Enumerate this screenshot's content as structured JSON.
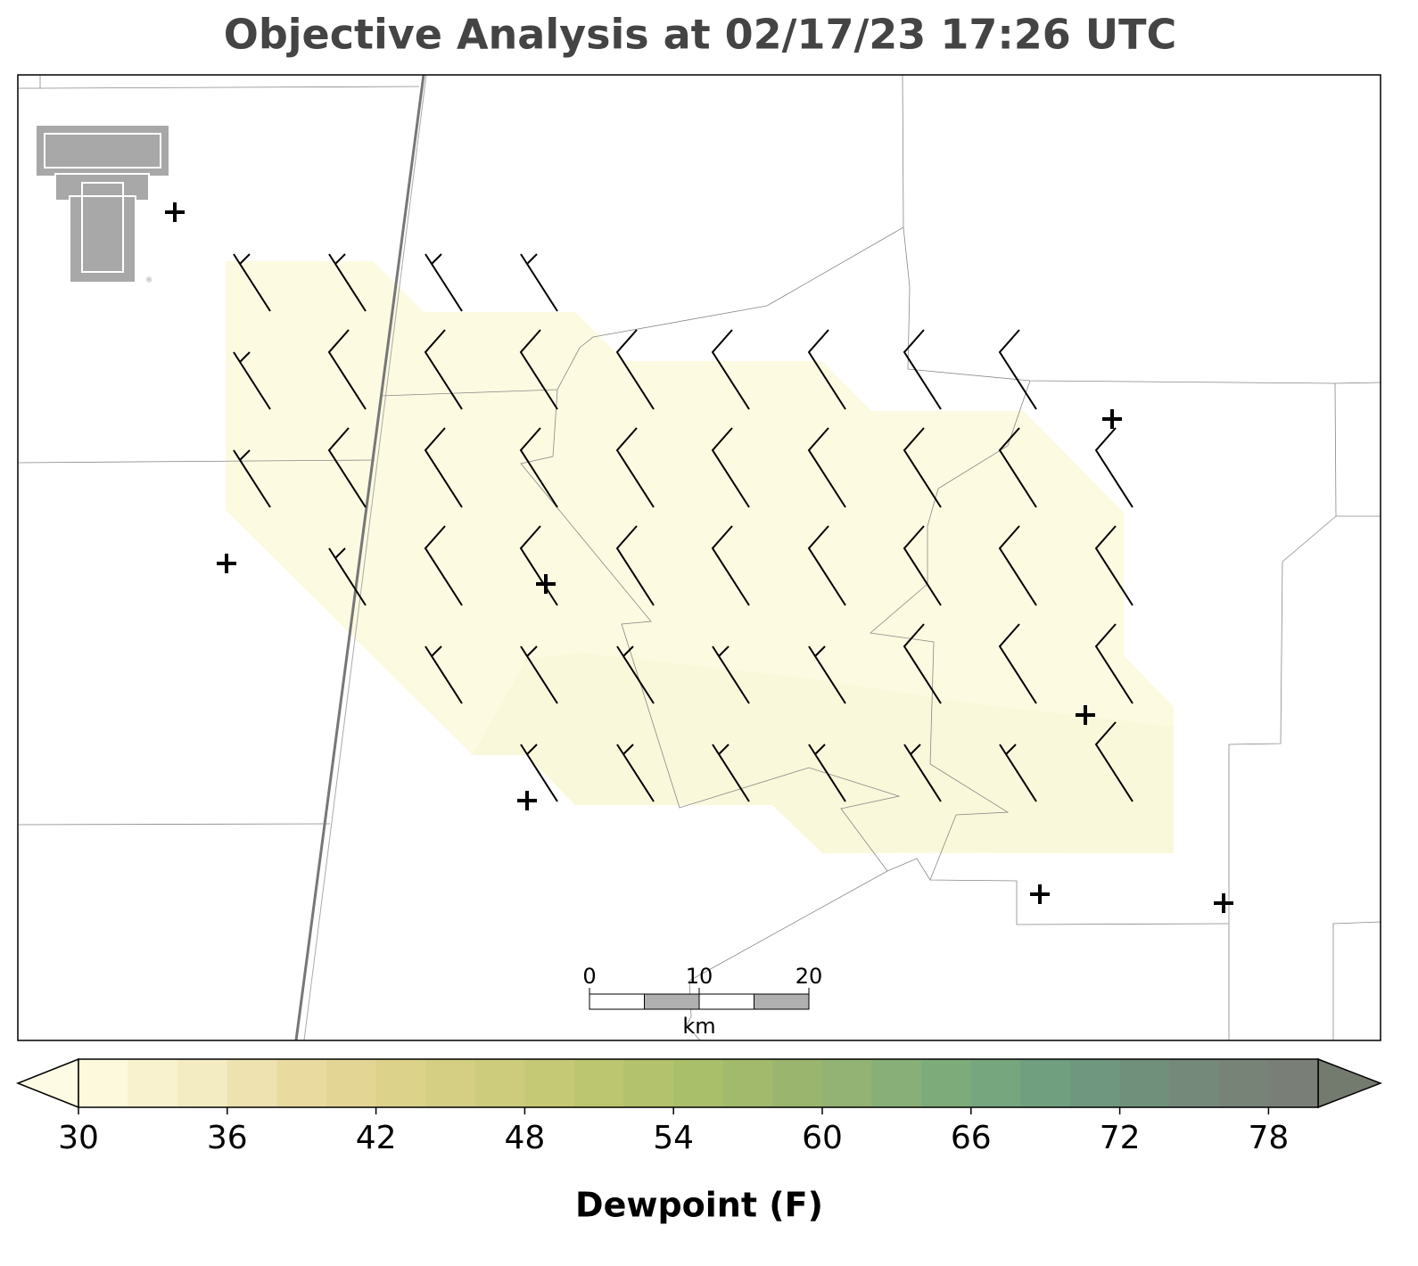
{
  "title": "Objective Analysis at 02/17/23 17:26 UTC",
  "colorbar": {
    "label": "Dewpoint (F)",
    "lim": [
      30,
      80
    ],
    "ticks": [
      30,
      36,
      42,
      48,
      54,
      60,
      66,
      72,
      78
    ],
    "colors": [
      "#fcf9dc",
      "#f8f2cf",
      "#f3ebc2",
      "#eee2b0",
      "#e9dba0",
      "#e3d593",
      "#dcd28a",
      "#d5cf83",
      "#cdcc7c",
      "#c5c976",
      "#bcc570",
      "#b3c26c",
      "#a9bf6a",
      "#a2ba6b",
      "#9ab66e",
      "#92b373",
      "#88af77",
      "#7eab7a",
      "#76a67d",
      "#6f9f7f",
      "#6f977f",
      "#71907c",
      "#74897a",
      "#788378",
      "#797e76"
    ],
    "under_color": "#fdfbe3",
    "over_color": "#737a6e"
  },
  "scale_bar": {
    "ticks": [
      0,
      10,
      20
    ],
    "unit": "km"
  }
}
